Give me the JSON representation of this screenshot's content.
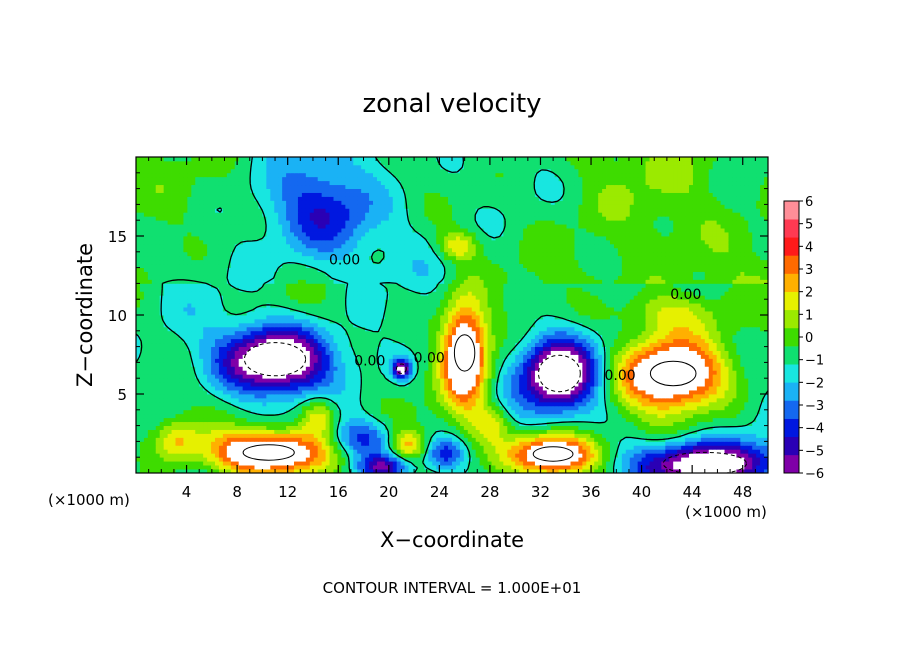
{
  "chart_data": {
    "type": "heatmap",
    "title": "zonal velocity",
    "xlabel": "X−coordinate",
    "ylabel": "Z−coordinate",
    "x_unit_left": "(×1000 m)",
    "x_unit_right": "(×1000 m)",
    "xlim": [
      0,
      50
    ],
    "ylim": [
      0,
      20
    ],
    "x_ticks": [
      4,
      8,
      12,
      16,
      20,
      24,
      28,
      32,
      36,
      40,
      44,
      48
    ],
    "y_ticks": [
      5,
      10,
      15
    ],
    "colorbar": {
      "min": -6,
      "max": 6,
      "tick_values": [
        6,
        5,
        4,
        3,
        2,
        1,
        0,
        -1,
        -2,
        -3,
        -4,
        -5,
        -6
      ],
      "tick_labels": [
        "6",
        "5",
        "4",
        "3",
        "2",
        "1",
        "0",
        "−1",
        "−2",
        "−3",
        "−4",
        "−5",
        "−6"
      ]
    },
    "contour_labels": [
      {
        "text": "0.00",
        "x": 16.5,
        "z": 13.2
      },
      {
        "text": "0.00",
        "x": 18.5,
        "z": 6.8
      },
      {
        "text": "0.00",
        "x": 23.2,
        "z": 7.0
      },
      {
        "text": "0.00",
        "x": 38.3,
        "z": 5.9
      },
      {
        "text": "0.00",
        "x": 43.5,
        "z": 11.0
      }
    ],
    "features": [
      {
        "kind": "low",
        "x": 11,
        "z": 7.2,
        "rx": 4.4,
        "rz": 2.1,
        "amp": -9
      },
      {
        "kind": "low",
        "x": 21,
        "z": 6.6,
        "rx": 0.7,
        "rz": 0.6,
        "amp": -7
      },
      {
        "kind": "low",
        "x": 15,
        "z": 16.5,
        "rx": 4,
        "rz": 2.8,
        "amp": -3.5
      },
      {
        "kind": "low",
        "x": 18,
        "z": 2.2,
        "rx": 2.5,
        "rz": 1.2,
        "amp": -4
      },
      {
        "kind": "low",
        "x": 33.5,
        "z": 6.3,
        "rx": 3,
        "rz": 2.3,
        "amp": -9
      },
      {
        "kind": "low",
        "x": 24.5,
        "z": 1.2,
        "rx": 1.6,
        "rz": 1,
        "amp": -4
      },
      {
        "kind": "low",
        "x": 45,
        "z": 0.6,
        "rx": 6,
        "rz": 1.4,
        "amp": -8
      },
      {
        "kind": "low",
        "x": 19.5,
        "z": 0.4,
        "rx": 2,
        "rz": 0.8,
        "amp": -5
      },
      {
        "kind": "high",
        "x": 26,
        "z": 7.6,
        "rx": 1.8,
        "rz": 3.3,
        "amp": 9
      },
      {
        "kind": "high",
        "x": 42.5,
        "z": 6.3,
        "rx": 4,
        "rz": 2.2,
        "amp": 9
      },
      {
        "kind": "high",
        "x": 10.5,
        "z": 1.3,
        "rx": 4.5,
        "rz": 1.4,
        "amp": 9
      },
      {
        "kind": "high",
        "x": 33,
        "z": 1.2,
        "rx": 3.5,
        "rz": 1.3,
        "amp": 9
      },
      {
        "kind": "high",
        "x": 14.5,
        "z": 3.6,
        "rx": 1.5,
        "rz": 1.3,
        "amp": 4
      },
      {
        "kind": "high",
        "x": 25.5,
        "z": 14.4,
        "rx": 1.5,
        "rz": 0.9,
        "amp": 3.5
      },
      {
        "kind": "high",
        "x": 42,
        "z": 10.2,
        "rx": 4,
        "rz": 1.5,
        "amp": 3
      },
      {
        "kind": "high",
        "x": 3.2,
        "z": 2.2,
        "rx": 1.6,
        "rz": 1.2,
        "amp": 3
      },
      {
        "kind": "high",
        "x": 21.5,
        "z": 1.8,
        "rx": 1.4,
        "rz": 0.9,
        "amp": 4
      },
      {
        "kind": "high",
        "x": 28,
        "z": 3.2,
        "rx": 1.5,
        "rz": 1.2,
        "amp": 3
      }
    ]
  },
  "footer": {
    "contour_interval": "CONTOUR INTERVAL = 1.000E+01"
  },
  "colors": {
    "below_min": "#ffffff",
    "above_max": "#ffffff",
    "axis": "#000000"
  }
}
